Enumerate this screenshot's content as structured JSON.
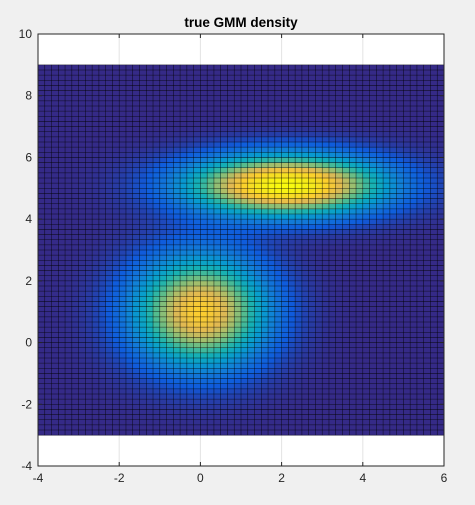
{
  "figure": {
    "background": "#f0f0f0"
  },
  "chart_data": {
    "type": "heatmap",
    "title": "true GMM density",
    "xlabel": "",
    "ylabel": "",
    "xlim": [
      -4,
      6
    ],
    "ylim": [
      -4,
      10
    ],
    "xticks": [
      -4,
      -2,
      0,
      2,
      4,
      6
    ],
    "yticks": [
      -4,
      -2,
      0,
      2,
      4,
      6,
      8,
      10
    ],
    "grid": true,
    "colormap": "parula",
    "surface_extent": {
      "x": [
        -4,
        6
      ],
      "y": [
        -3,
        9
      ]
    },
    "mesh_cells": {
      "x": 60,
      "y": 72
    },
    "mesh_edge_color": "#000000",
    "components": [
      {
        "mean": [
          0,
          1
        ],
        "sigma": [
          1.1,
          1.2
        ],
        "peak_fraction": 0.8
      },
      {
        "mean": [
          2.1,
          5.1
        ],
        "sigma": [
          1.6,
          0.65
        ],
        "peak_fraction": 1.0
      }
    ]
  }
}
